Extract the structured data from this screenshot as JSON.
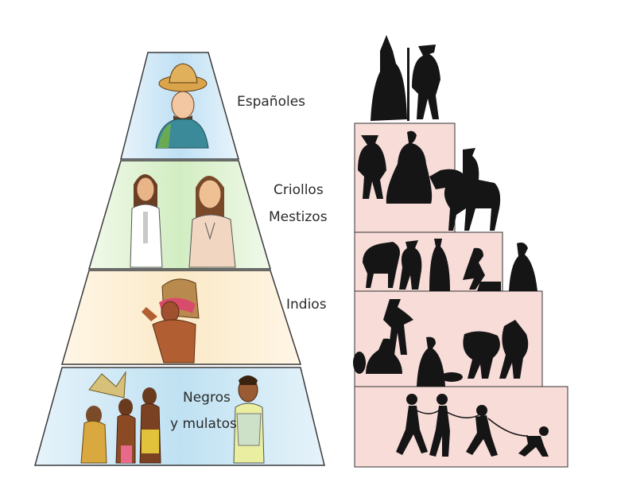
{
  "left_pyramid": {
    "tiers": [
      {
        "label_lines": [
          "Españoles"
        ],
        "color": "#bfe0f4",
        "figures": [
          "spaniard-hat"
        ]
      },
      {
        "label_lines": [
          "Criollos",
          "Mestizos"
        ],
        "color": "#d2edc2",
        "figures": [
          "criollo-man",
          "mestizo-man"
        ]
      },
      {
        "label_lines": [
          "Indios"
        ],
        "color": "#fbe9c7",
        "figures": [
          "indio-porter"
        ]
      },
      {
        "label_lines": [
          "Negros",
          "y mulatos"
        ],
        "color": "#bfe1f2",
        "figures": [
          "enslaved-group",
          "mulato-man"
        ]
      }
    ],
    "border_color": "#3a3a3a"
  },
  "right_staircase": {
    "step_color": "#f7dcd8",
    "silhouette_color": "#151515",
    "tiers": [
      {
        "figures": [
          "bishop-silhouette",
          "nobleman-silhouette"
        ]
      },
      {
        "figures": [
          "caballero-silhouette",
          "lady-silhouette",
          "horseman-silhouette"
        ]
      },
      {
        "figures": [
          "mule-silhouette",
          "merchant-silhouette",
          "friar-silhouette",
          "artisan-silhouette",
          "woman-silhouette"
        ]
      },
      {
        "figures": [
          "vendor-silhouette",
          "servant-silhouette",
          "washerwoman-silhouette",
          "porter-silhouette",
          "carrier-silhouette"
        ]
      },
      {
        "figures": [
          "chained-slaves-silhouette"
        ]
      }
    ]
  }
}
